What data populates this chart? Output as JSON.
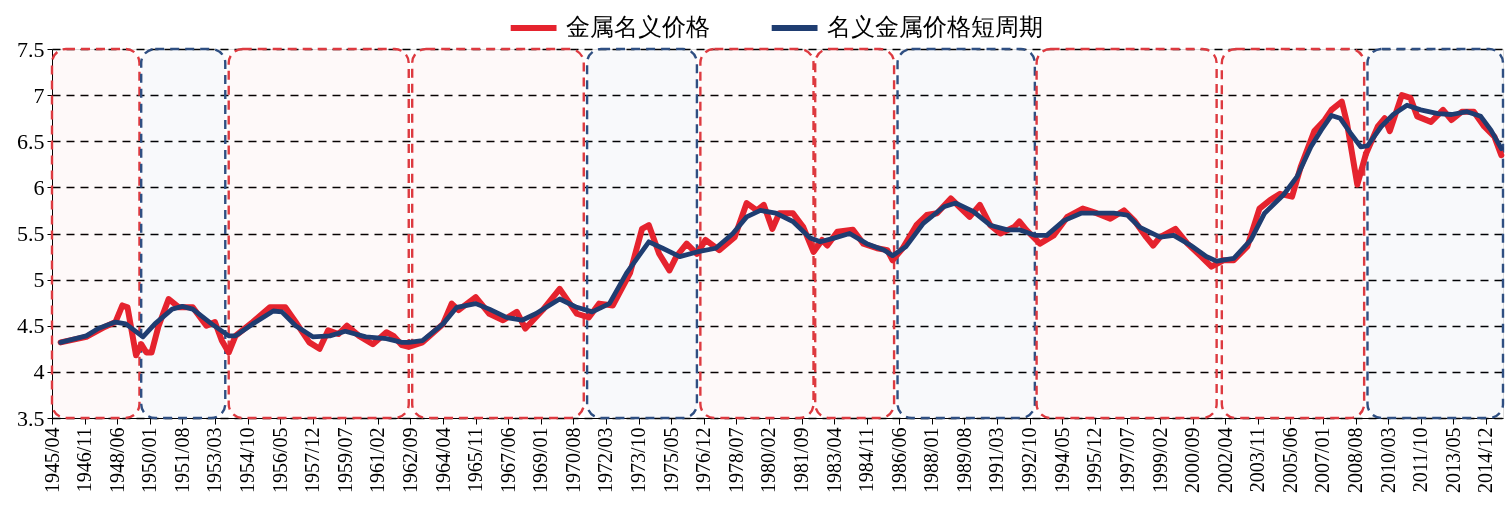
{
  "chart_data": {
    "type": "line",
    "series": [
      {
        "name": "金属名义价格",
        "color": "#e5232e",
        "x": [
          "1945-09",
          "1946-12",
          "1947-11",
          "1948-05",
          "1948-09",
          "1948-12",
          "1949-05",
          "1949-08",
          "1949-11",
          "1950-02",
          "1950-06",
          "1950-12",
          "1951-06",
          "1952-02",
          "1952-10",
          "1953-03",
          "1953-07",
          "1953-11",
          "1954-03",
          "1955-01",
          "1955-11",
          "1956-08",
          "1957-02",
          "1957-10",
          "1958-04",
          "1958-09",
          "1959-03",
          "1959-08",
          "1960-03",
          "1960-11",
          "1961-07",
          "1961-11",
          "1962-04",
          "1962-08",
          "1963-04",
          "1964-04",
          "1964-09",
          "1965-01",
          "1965-11",
          "1966-07",
          "1967-03",
          "1967-11",
          "1968-04",
          "1969-02",
          "1969-12",
          "1970-10",
          "1971-05",
          "1971-11",
          "1972-07",
          "1973-05",
          "1973-12",
          "1974-04",
          "1974-10",
          "1975-04",
          "1975-08",
          "1976-02",
          "1976-08",
          "1977-01",
          "1977-09",
          "1978-06",
          "1979-01",
          "1979-07",
          "1979-11",
          "1980-04",
          "1980-08",
          "1981-04",
          "1981-10",
          "1982-04",
          "1982-09",
          "1982-12",
          "1983-06",
          "1984-03",
          "1984-09",
          "1985-05",
          "1985-11",
          "1986-02",
          "1986-08",
          "1987-04",
          "1987-10",
          "1988-04",
          "1988-12",
          "1989-05",
          "1989-11",
          "1990-05",
          "1990-11",
          "1991-05",
          "1992-01",
          "1992-04",
          "1992-08",
          "1993-04",
          "1993-12",
          "1994-08",
          "1995-05",
          "1996-01",
          "1996-09",
          "1997-05",
          "1997-11",
          "1998-06",
          "1998-10",
          "1999-02",
          "1999-11",
          "2000-06",
          "2001-02",
          "2001-08",
          "2002-03",
          "2002-09",
          "2003-05",
          "2003-12",
          "2004-06",
          "2004-12",
          "2005-07",
          "2005-12",
          "2006-08",
          "2007-02",
          "2007-06",
          "2007-12",
          "2008-03",
          "2008-09",
          "2009-02",
          "2009-09",
          "2010-01",
          "2010-04",
          "2010-11",
          "2011-04",
          "2011-08",
          "2012-04",
          "2012-11",
          "2013-04",
          "2013-10",
          "2014-05",
          "2014-11",
          "2015-05",
          "2015-09"
        ],
        "values": [
          4.32,
          4.38,
          4.49,
          4.54,
          4.72,
          4.7,
          4.18,
          4.3,
          4.21,
          4.21,
          4.49,
          4.79,
          4.7,
          4.7,
          4.5,
          4.54,
          4.34,
          4.21,
          4.39,
          4.54,
          4.7,
          4.7,
          4.54,
          4.32,
          4.25,
          4.45,
          4.41,
          4.5,
          4.39,
          4.3,
          4.43,
          4.39,
          4.29,
          4.27,
          4.32,
          4.52,
          4.74,
          4.67,
          4.81,
          4.63,
          4.56,
          4.65,
          4.47,
          4.67,
          4.9,
          4.63,
          4.59,
          4.74,
          4.72,
          5.07,
          5.55,
          5.59,
          5.28,
          5.1,
          5.25,
          5.39,
          5.28,
          5.43,
          5.32,
          5.46,
          5.83,
          5.75,
          5.81,
          5.55,
          5.72,
          5.72,
          5.57,
          5.3,
          5.43,
          5.37,
          5.52,
          5.54,
          5.39,
          5.34,
          5.32,
          5.21,
          5.34,
          5.59,
          5.7,
          5.72,
          5.88,
          5.79,
          5.68,
          5.81,
          5.59,
          5.5,
          5.57,
          5.63,
          5.54,
          5.39,
          5.48,
          5.68,
          5.77,
          5.72,
          5.66,
          5.75,
          5.64,
          5.46,
          5.37,
          5.46,
          5.55,
          5.39,
          5.25,
          5.14,
          5.21,
          5.21,
          5.36,
          5.77,
          5.86,
          5.93,
          5.9,
          6.22,
          6.61,
          6.73,
          6.84,
          6.93,
          6.7,
          6.03,
          6.36,
          6.66,
          6.75,
          6.61,
          7.0,
          6.97,
          6.77,
          6.71,
          6.84,
          6.73,
          6.82,
          6.82,
          6.66,
          6.55,
          6.35
        ]
      },
      {
        "name": "名义金属价格短周期",
        "color": "#1f3d71",
        "x": [
          "1945-09",
          "1946-12",
          "1947-07",
          "1948-05",
          "1948-11",
          "1949-09",
          "1950-04",
          "1951-02",
          "1951-08",
          "1952-02",
          "1953-01",
          "1953-11",
          "1954-03",
          "1955-01",
          "1956-01",
          "1956-06",
          "1957-02",
          "1957-12",
          "1958-10",
          "1959-07",
          "1960-07",
          "1961-07",
          "1962-04",
          "1962-08",
          "1963-04",
          "1964-04",
          "1964-12",
          "1965-11",
          "1966-07",
          "1967-05",
          "1968-02",
          "1968-10",
          "1969-12",
          "1970-10",
          "1971-07",
          "1972-05",
          "1973-03",
          "1974-04",
          "1974-12",
          "1975-10",
          "1976-08",
          "1977-07",
          "1978-05",
          "1979-01",
          "1979-09",
          "1980-06",
          "1981-04",
          "1982-02",
          "1982-08",
          "1983-04",
          "1984-01",
          "1984-11",
          "1985-09",
          "1986-02",
          "1986-10",
          "1987-08",
          "1988-08",
          "1989-03",
          "1990-01",
          "1990-11",
          "1991-09",
          "1992-04",
          "1993-01",
          "1993-08",
          "1994-06",
          "1995-04",
          "1996-01",
          "1996-11",
          "1997-07",
          "1998-02",
          "1999-02",
          "1999-10",
          "2000-08",
          "2001-05",
          "2001-11",
          "2002-09",
          "2003-07",
          "2004-03",
          "2005-02",
          "2005-10",
          "2006-06",
          "2006-12",
          "2007-06",
          "2007-11",
          "2008-05",
          "2008-11",
          "2009-03",
          "2009-11",
          "2010-06",
          "2011-02",
          "2011-10",
          "2012-08",
          "2013-04",
          "2014-01",
          "2014-09",
          "2015-03",
          "2015-09"
        ],
        "values": [
          4.32,
          4.39,
          4.47,
          4.54,
          4.52,
          4.38,
          4.52,
          4.68,
          4.71,
          4.68,
          4.52,
          4.39,
          4.39,
          4.52,
          4.66,
          4.65,
          4.5,
          4.38,
          4.39,
          4.44,
          4.38,
          4.36,
          4.32,
          4.32,
          4.34,
          4.52,
          4.7,
          4.74,
          4.68,
          4.59,
          4.56,
          4.63,
          4.79,
          4.7,
          4.65,
          4.74,
          5.07,
          5.41,
          5.34,
          5.25,
          5.3,
          5.34,
          5.5,
          5.68,
          5.75,
          5.72,
          5.63,
          5.45,
          5.41,
          5.45,
          5.5,
          5.39,
          5.32,
          5.26,
          5.36,
          5.61,
          5.79,
          5.83,
          5.74,
          5.59,
          5.54,
          5.54,
          5.48,
          5.48,
          5.64,
          5.72,
          5.72,
          5.72,
          5.7,
          5.57,
          5.46,
          5.48,
          5.37,
          5.25,
          5.2,
          5.23,
          5.43,
          5.72,
          5.92,
          6.12,
          6.44,
          6.62,
          6.78,
          6.75,
          6.59,
          6.44,
          6.45,
          6.66,
          6.79,
          6.89,
          6.84,
          6.8,
          6.79,
          6.82,
          6.77,
          6.62,
          6.42
        ]
      }
    ],
    "xlim": [
      "1945-04",
      "2015-10"
    ],
    "xticks": [
      {
        "value": "1945-04",
        "label": "1945/04"
      },
      {
        "value": "1946-11",
        "label": "1946/11"
      },
      {
        "value": "1948-06",
        "label": "1948/06"
      },
      {
        "value": "1950-01",
        "label": "1950/01"
      },
      {
        "value": "1951-08",
        "label": "1951/08"
      },
      {
        "value": "1953-03",
        "label": "1953/03"
      },
      {
        "value": "1954-10",
        "label": "1954/10"
      },
      {
        "value": "1956-05",
        "label": "1956/05"
      },
      {
        "value": "1957-12",
        "label": "1957/12"
      },
      {
        "value": "1959-07",
        "label": "1959/07"
      },
      {
        "value": "1961-02",
        "label": "1961/02"
      },
      {
        "value": "1962-09",
        "label": "1962/09"
      },
      {
        "value": "1964-04",
        "label": "1964/04"
      },
      {
        "value": "1965-11",
        "label": "1965/11"
      },
      {
        "value": "1967-06",
        "label": "1967/06"
      },
      {
        "value": "1969-01",
        "label": "1969/01"
      },
      {
        "value": "1970-08",
        "label": "1970/08"
      },
      {
        "value": "1972-03",
        "label": "1972/03"
      },
      {
        "value": "1973-10",
        "label": "1973/10"
      },
      {
        "value": "1975-05",
        "label": "1975/05"
      },
      {
        "value": "1976-12",
        "label": "1976/12"
      },
      {
        "value": "1978-07",
        "label": "1978/07"
      },
      {
        "value": "1980-02",
        "label": "1980/02"
      },
      {
        "value": "1981-09",
        "label": "1981/09"
      },
      {
        "value": "1983-04",
        "label": "1983/04"
      },
      {
        "value": "1984-11",
        "label": "1984/11"
      },
      {
        "value": "1986-06",
        "label": "1986/06"
      },
      {
        "value": "1988-01",
        "label": "1988/01"
      },
      {
        "value": "1989-08",
        "label": "1989/08"
      },
      {
        "value": "1991-03",
        "label": "1991/03"
      },
      {
        "value": "1992-10",
        "label": "1992/10"
      },
      {
        "value": "1994-05",
        "label": "1994/05"
      },
      {
        "value": "1995-12",
        "label": "1995/12"
      },
      {
        "value": "1997-07",
        "label": "1997/07"
      },
      {
        "value": "1999-02",
        "label": "1999/02"
      },
      {
        "value": "2000-09",
        "label": "2000/09"
      },
      {
        "value": "2002-04",
        "label": "2002/04"
      },
      {
        "value": "2003-11",
        "label": "2003/11"
      },
      {
        "value": "2005-06",
        "label": "2005/06"
      },
      {
        "value": "2007-01",
        "label": "2007/01"
      },
      {
        "value": "2008-08",
        "label": "2008/08"
      },
      {
        "value": "2010-03",
        "label": "2010/03"
      },
      {
        "value": "2011-10",
        "label": "2011/10"
      },
      {
        "value": "2013-05",
        "label": "2013/05"
      },
      {
        "value": "2014-12",
        "label": "2014/12"
      }
    ],
    "ylim": [
      3.5,
      7.5
    ],
    "yticks": [
      3.5,
      4,
      4.5,
      5,
      5.5,
      6,
      6.5,
      7,
      7.5
    ],
    "grid": "y",
    "legend": "top",
    "marker": "none",
    "line_style": "solid",
    "bands": [
      {
        "axis": "x",
        "from": "1945-04",
        "to": "1949-07",
        "color": "#dd3a40"
      },
      {
        "axis": "x",
        "from": "1949-08",
        "to": "1953-09",
        "color": "#2f4f82"
      },
      {
        "axis": "x",
        "from": "1953-11",
        "to": "1962-08",
        "color": "#dd3a40"
      },
      {
        "axis": "x",
        "from": "1962-10",
        "to": "1971-02",
        "color": "#dd3a40"
      },
      {
        "axis": "x",
        "from": "1971-04",
        "to": "1976-08",
        "color": "#2f4f82"
      },
      {
        "axis": "x",
        "from": "1976-10",
        "to": "1982-04",
        "color": "#dd3a40"
      },
      {
        "axis": "x",
        "from": "1982-05",
        "to": "1986-03",
        "color": "#dd3a40"
      },
      {
        "axis": "x",
        "from": "1986-05",
        "to": "1993-01",
        "color": "#2f4f82"
      },
      {
        "axis": "x",
        "from": "1993-02",
        "to": "2001-11",
        "color": "#dd3a40"
      },
      {
        "axis": "x",
        "from": "2002-02",
        "to": "2009-01",
        "color": "#dd3a40"
      },
      {
        "axis": "x",
        "from": "2009-03",
        "to": "2015-10",
        "color": "#2f4f82"
      }
    ]
  }
}
